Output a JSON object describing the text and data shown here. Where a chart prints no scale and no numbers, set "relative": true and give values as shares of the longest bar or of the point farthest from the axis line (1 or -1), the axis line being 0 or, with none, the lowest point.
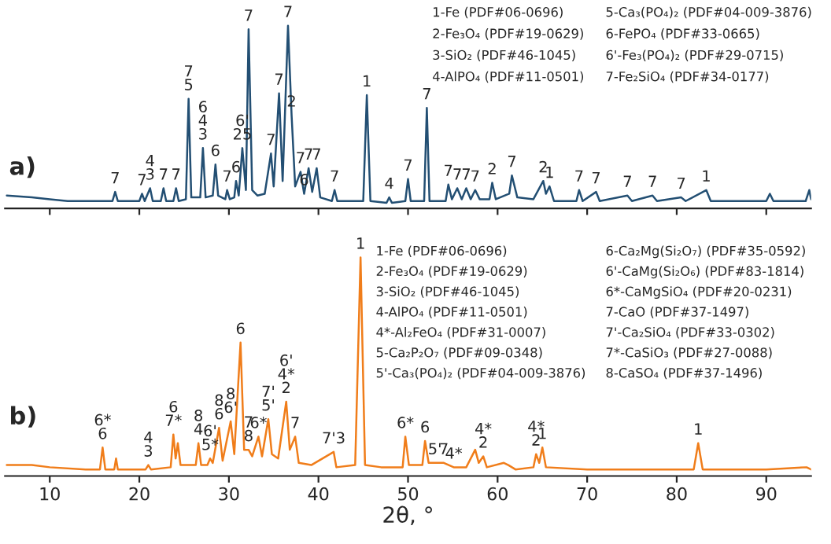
{
  "chart_data": [
    {
      "type": "line",
      "relative": true,
      "xlim": [
        5,
        95
      ],
      "xticks": [
        10,
        20,
        30,
        40,
        50,
        60,
        70,
        80,
        90
      ],
      "tick_labels": false,
      "grid": false,
      "legend": false,
      "series": [
        {
          "color": "#234f73",
          "x": [
            5.2,
            8,
            10,
            12,
            16,
            17,
            17.3,
            17.6,
            20,
            20.3,
            20.6,
            21.2,
            21.5,
            22.4,
            22.7,
            23.0,
            23.8,
            24.1,
            24.4,
            25.2,
            25.5,
            25.8,
            26.8,
            27.1,
            27.4,
            28.2,
            28.5,
            28.8,
            29.6,
            29.8,
            30.1,
            30.6,
            30.8,
            31.1,
            31.5,
            31.9,
            32.2,
            32.6,
            33.2,
            34.0,
            34.7,
            35.0,
            35.6,
            36.0,
            36.6,
            37.0,
            37.4,
            38.0,
            38.4,
            38.9,
            39.3,
            39.8,
            40.2,
            41.5,
            41.8,
            42.1,
            45.0,
            45.4,
            45.8,
            47.6,
            47.9,
            48.2,
            49.7,
            50.0,
            50.3,
            51.8,
            52.1,
            52.4,
            54.2,
            54.5,
            54.9,
            55.5,
            56.0,
            56.5,
            57.0,
            57.5,
            58,
            59.1,
            59.4,
            59.8,
            61.3,
            61.6,
            62.2,
            64,
            65.1,
            65.4,
            65.8,
            66.3,
            68.8,
            69.1,
            69.5,
            71.0,
            71.4,
            74.5,
            75,
            77.3,
            77.8,
            80.5,
            81,
            83.3,
            83.8,
            90,
            90.4,
            90.8,
            94.4,
            94.8,
            95.0
          ],
          "values": [
            0.07,
            0.06,
            0.05,
            0.04,
            0.04,
            0.04,
            0.09,
            0.04,
            0.04,
            0.08,
            0.04,
            0.11,
            0.04,
            0.04,
            0.11,
            0.04,
            0.04,
            0.11,
            0.04,
            0.05,
            0.6,
            0.06,
            0.06,
            0.33,
            0.06,
            0.07,
            0.24,
            0.07,
            0.05,
            0.1,
            0.05,
            0.06,
            0.15,
            0.07,
            0.33,
            0.1,
            0.98,
            0.1,
            0.07,
            0.08,
            0.3,
            0.12,
            0.63,
            0.15,
            1.0,
            0.51,
            0.12,
            0.2,
            0.08,
            0.22,
            0.09,
            0.22,
            0.06,
            0.04,
            0.1,
            0.04,
            0.04,
            0.62,
            0.04,
            0.03,
            0.06,
            0.03,
            0.04,
            0.16,
            0.04,
            0.04,
            0.55,
            0.04,
            0.04,
            0.13,
            0.05,
            0.11,
            0.05,
            0.11,
            0.05,
            0.1,
            0.05,
            0.05,
            0.14,
            0.05,
            0.08,
            0.18,
            0.06,
            0.05,
            0.15,
            0.08,
            0.12,
            0.04,
            0.04,
            0.1,
            0.04,
            0.09,
            0.04,
            0.07,
            0.04,
            0.07,
            0.04,
            0.06,
            0.04,
            0.1,
            0.04,
            0.04,
            0.08,
            0.04,
            0.04,
            0.1,
            0.05
          ]
        }
      ],
      "annotations": [
        "a)",
        "1-Fe (PDF#06-0696)",
        "2-Fe₃O₄ (PDF#19-0629)",
        "3-SiO₂ (PDF#46-1045)",
        "4-AlPO₄ (PDF#11-0501)",
        "5-Ca₃(PO₄)₂ (PDF#04-009-3876)",
        "6-FePO₄ (PDF#33-0665)",
        "6'-Fe₃(PO₄)₂ (PDF#29-0715)",
        "7-Fe₂SiO₄ (PDF#34-0177)",
        {
          "text": "7",
          "x": 17.3,
          "y": 0.09
        },
        {
          "text": "7",
          "x": 20.3,
          "y": 0.08
        },
        {
          "text": "4\n3",
          "x": 21.2,
          "y": 0.11
        },
        {
          "text": "7",
          "x": 22.7,
          "y": 0.11
        },
        {
          "text": "7",
          "x": 24.1,
          "y": 0.11
        },
        {
          "text": "7\n5",
          "x": 25.5,
          "y": 0.6
        },
        {
          "text": "6\n4\n3",
          "x": 27.1,
          "y": 0.33
        },
        {
          "text": "6",
          "x": 28.5,
          "y": 0.24
        },
        {
          "text": "7",
          "x": 29.8,
          "y": 0.1
        },
        {
          "text": "6",
          "x": 30.8,
          "y": 0.15
        },
        {
          "text": "6'\n25",
          "x": 31.5,
          "y": 0.33
        },
        {
          "text": "7",
          "x": 32.2,
          "y": 0.98
        },
        {
          "text": "7",
          "x": 34.7,
          "y": 0.3
        },
        {
          "text": "7",
          "x": 35.6,
          "y": 0.63
        },
        {
          "text": "7",
          "x": 36.6,
          "y": 1.0
        },
        {
          "text": "2",
          "x": 37.0,
          "y": 0.51
        },
        {
          "text": "7",
          "x": 38.0,
          "y": 0.2
        },
        {
          "text": "7",
          "x": 38.9,
          "y": 0.22
        },
        {
          "text": "7",
          "x": 39.8,
          "y": 0.22
        },
        {
          "text": "6",
          "x": 38.4,
          "y": 0.08
        },
        {
          "text": "7",
          "x": 41.8,
          "y": 0.1
        },
        {
          "text": "1",
          "x": 45.4,
          "y": 0.62
        },
        {
          "text": "4",
          "x": 47.9,
          "y": 0.06
        },
        {
          "text": "7",
          "x": 50.0,
          "y": 0.16
        },
        {
          "text": "7",
          "x": 52.1,
          "y": 0.55
        },
        {
          "text": "7",
          "x": 54.5,
          "y": 0.13
        },
        {
          "text": "7",
          "x": 55.5,
          "y": 0.11
        },
        {
          "text": "7",
          "x": 56.5,
          "y": 0.11
        },
        {
          "text": "7",
          "x": 57.5,
          "y": 0.1
        },
        {
          "text": "2",
          "x": 59.4,
          "y": 0.14
        },
        {
          "text": "7",
          "x": 61.6,
          "y": 0.18
        },
        {
          "text": "2",
          "x": 65.1,
          "y": 0.15
        },
        {
          "text": "1",
          "x": 65.8,
          "y": 0.12
        },
        {
          "text": "7",
          "x": 69.1,
          "y": 0.1
        },
        {
          "text": "7",
          "x": 71.0,
          "y": 0.09
        },
        {
          "text": "7",
          "x": 74.5,
          "y": 0.07
        },
        {
          "text": "7",
          "x": 77.3,
          "y": 0.07
        },
        {
          "text": "7",
          "x": 80.5,
          "y": 0.06
        },
        {
          "text": "1",
          "x": 83.3,
          "y": 0.1
        }
      ]
    },
    {
      "type": "line",
      "relative": true,
      "xlim": [
        5,
        95
      ],
      "xticks": [
        10,
        20,
        30,
        40,
        50,
        60,
        70,
        80,
        90
      ],
      "tick_labels": "x",
      "xlabel": "2θ, °",
      "grid": false,
      "legend": false,
      "series": [
        {
          "color": "#f07d1a",
          "x": [
            5.2,
            8,
            10,
            14,
            15.6,
            15.9,
            16.2,
            17.2,
            17.4,
            17.6,
            20.7,
            21.0,
            21.3,
            23.5,
            23.8,
            24.05,
            24.3,
            24.6,
            26.3,
            26.6,
            26.9,
            27.6,
            27.9,
            28.2,
            28.9,
            29.3,
            30.2,
            30.6,
            31.3,
            31.7,
            32.2,
            32.6,
            33.3,
            33.7,
            34.4,
            34.8,
            35.5,
            36.4,
            36.8,
            37.4,
            37.8,
            39.2,
            41.7,
            42.0,
            44.1,
            44.7,
            45.2,
            47,
            49.4,
            49.7,
            50.1,
            51.6,
            51.9,
            52.3,
            53.0,
            54.0,
            55.1,
            56.5,
            57.5,
            57.9,
            58.4,
            58.8,
            60.7,
            61.2,
            62,
            64.0,
            64.3,
            64.65,
            65.0,
            65.4,
            70,
            75,
            81.9,
            82.4,
            82.9,
            90,
            94.5,
            95
          ],
          "values": [
            0.05,
            0.05,
            0.04,
            0.03,
            0.03,
            0.13,
            0.03,
            0.03,
            0.08,
            0.03,
            0.03,
            0.05,
            0.03,
            0.04,
            0.19,
            0.08,
            0.15,
            0.05,
            0.05,
            0.15,
            0.05,
            0.05,
            0.08,
            0.06,
            0.22,
            0.07,
            0.25,
            0.1,
            0.61,
            0.12,
            0.12,
            0.09,
            0.18,
            0.09,
            0.26,
            0.1,
            0.08,
            0.34,
            0.12,
            0.18,
            0.06,
            0.05,
            0.11,
            0.04,
            0.05,
            1.0,
            0.05,
            0.04,
            0.04,
            0.18,
            0.05,
            0.05,
            0.16,
            0.06,
            0.06,
            0.06,
            0.04,
            0.04,
            0.12,
            0.06,
            0.09,
            0.04,
            0.06,
            0.05,
            0.03,
            0.04,
            0.1,
            0.06,
            0.13,
            0.04,
            0.03,
            0.03,
            0.03,
            0.15,
            0.03,
            0.03,
            0.04,
            0.03
          ]
        }
      ],
      "annotations": [
        "b)",
        "1-Fe (PDF#06-0696)",
        "2-Fe₃O₄ (PDF#19-0629)",
        "3-SiO₂ (PDF#46-1045)",
        "4-AlPO₄ (PDF#11-0501)",
        "4*-Al₂FeO₄ (PDF#31-0007)",
        "5-Ca₂P₂O₇ (PDF#09-0348)",
        "5'-Ca₃(PO₄)₂ (PDF#04-009-3876)",
        "6-Ca₂Mg(Si₂O₇) (PDF#35-0592)",
        "6'-CaMg(Si₂O₆) (PDF#83-1814)",
        "6*-CaMgSiO₄ (PDF#20-0231)",
        "7-CaO (PDF#37-1497)",
        "7'-Ca₂SiO₄ (PDF#33-0302)",
        "7*-CaSiO₃ (PDF#27-0088)",
        "8-CaSO₄ (PDF#37-1496)",
        {
          "text": "6*\n6",
          "x": 15.9,
          "y": 0.13
        },
        {
          "text": "4\n3",
          "x": 21.0,
          "y": 0.05
        },
        {
          "text": "6\n7*",
          "x": 23.8,
          "y": 0.19
        },
        {
          "text": "8\n4",
          "x": 26.6,
          "y": 0.15
        },
        {
          "text": "6'\n5*",
          "x": 27.9,
          "y": 0.08
        },
        {
          "text": "8\n6",
          "x": 28.9,
          "y": 0.22
        },
        {
          "text": "8\n6'",
          "x": 30.2,
          "y": 0.25
        },
        {
          "text": "6",
          "x": 31.3,
          "y": 0.61
        },
        {
          "text": "7\n8",
          "x": 32.2,
          "y": 0.12
        },
        {
          "text": "6*",
          "x": 33.3,
          "y": 0.18
        },
        {
          "text": "7'\n5'",
          "x": 34.4,
          "y": 0.26
        },
        {
          "text": "6'\n4*\n2",
          "x": 36.4,
          "y": 0.34
        },
        {
          "text": "7",
          "x": 37.4,
          "y": 0.18
        },
        {
          "text": "7'3",
          "x": 41.7,
          "y": 0.11
        },
        {
          "text": "1",
          "x": 44.7,
          "y": 1.0
        },
        {
          "text": "6*",
          "x": 49.7,
          "y": 0.18
        },
        {
          "text": "6",
          "x": 51.9,
          "y": 0.16
        },
        {
          "text": "5'",
          "x": 53.0,
          "y": 0.06
        },
        {
          "text": "7",
          "x": 54.0,
          "y": 0.06
        },
        {
          "text": "4*",
          "x": 55.1,
          "y": 0.04
        },
        {
          "text": "4*\n2",
          "x": 58.4,
          "y": 0.09
        },
        {
          "text": "4*\n2",
          "x": 64.3,
          "y": 0.1
        },
        {
          "text": "1",
          "x": 65.0,
          "y": 0.13
        },
        {
          "text": "1",
          "x": 82.4,
          "y": 0.15
        }
      ]
    }
  ]
}
